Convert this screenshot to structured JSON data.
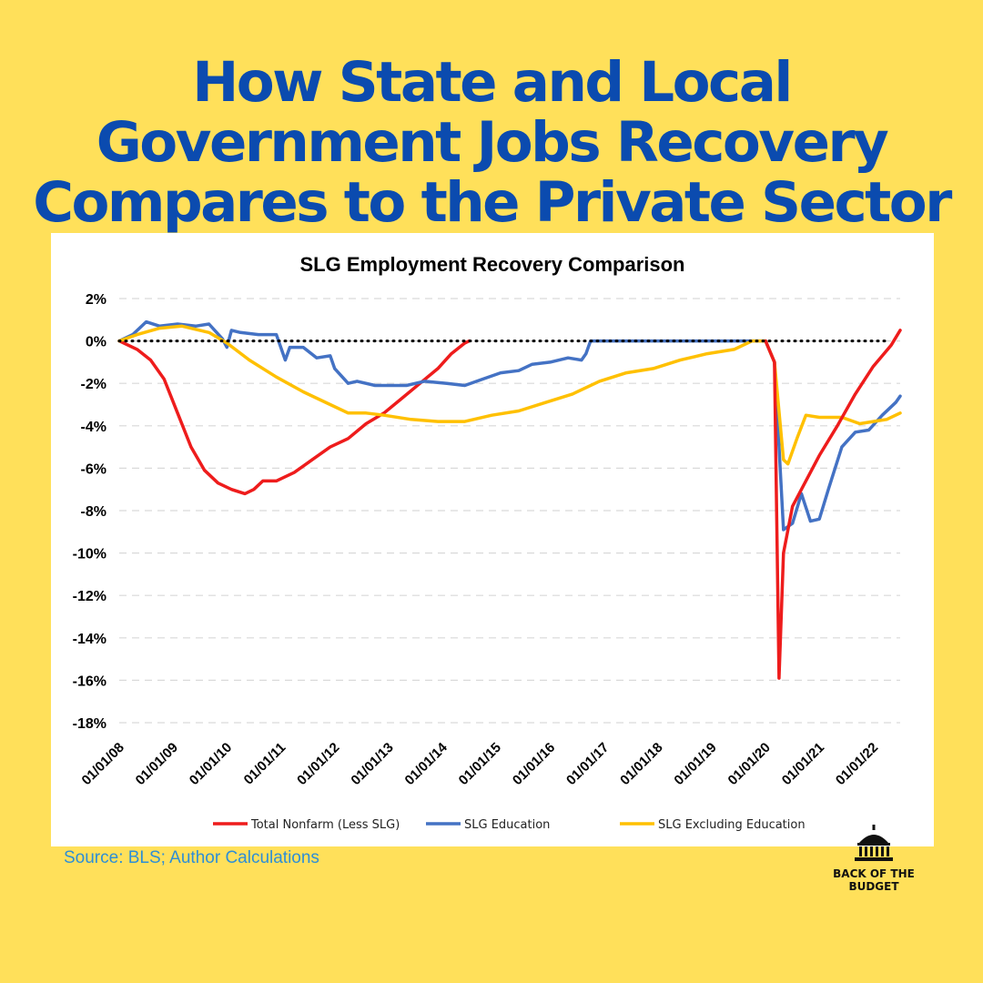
{
  "headline": {
    "line1": "How State and Local",
    "line2": "Government Jobs Recovery",
    "line3": "Compares to the Private Sector"
  },
  "source": "Source: BLS; Author Calculations",
  "logo": {
    "line1": "BACK OF THE",
    "line2": "BUDGET"
  },
  "colors": {
    "background": "#FFE05A",
    "headline": "#0B4BAF",
    "source": "#2E8ED6"
  },
  "chart_data": {
    "type": "line",
    "title": "SLG Employment Recovery Comparison",
    "xlabel": "",
    "ylabel": "",
    "ylim": [
      -18,
      2
    ],
    "x_range": [
      "2008-01",
      "2022-07"
    ],
    "y_ticks": [
      "2%",
      "0%",
      "-2%",
      "-4%",
      "-6%",
      "-8%",
      "-10%",
      "-12%",
      "-14%",
      "-16%",
      "-18%"
    ],
    "x_ticks": [
      "01/01/08",
      "01/01/09",
      "01/01/10",
      "01/01/11",
      "01/01/12",
      "01/01/13",
      "01/01/14",
      "01/01/15",
      "01/01/16",
      "01/01/17",
      "01/01/18",
      "01/01/19",
      "01/01/20",
      "01/01/21",
      "01/01/22"
    ],
    "grid": true,
    "legend_position": "bottom",
    "series": [
      {
        "name": "Total Nonfarm (Less SLG)",
        "color": "#EE1C1C",
        "points": [
          [
            "2008-01",
            0
          ],
          [
            "2008-05",
            -0.4
          ],
          [
            "2008-08",
            -0.9
          ],
          [
            "2008-11",
            -1.8
          ],
          [
            "2009-02",
            -3.4
          ],
          [
            "2009-05",
            -5.0
          ],
          [
            "2009-08",
            -6.1
          ],
          [
            "2009-11",
            -6.7
          ],
          [
            "2010-02",
            -7.0
          ],
          [
            "2010-05",
            -7.2
          ],
          [
            "2010-07",
            -7.0
          ],
          [
            "2010-09",
            -6.6
          ],
          [
            "2010-12",
            -6.6
          ],
          [
            "2011-04",
            -6.2
          ],
          [
            "2011-08",
            -5.6
          ],
          [
            "2011-12",
            -5.0
          ],
          [
            "2012-04",
            -4.6
          ],
          [
            "2012-08",
            -3.9
          ],
          [
            "2012-12",
            -3.4
          ],
          [
            "2013-04",
            -2.7
          ],
          [
            "2013-08",
            -2.0
          ],
          [
            "2013-12",
            -1.3
          ],
          [
            "2014-03",
            -0.6
          ],
          [
            "2014-06",
            -0.1
          ],
          [
            "2014-07",
            0
          ]
        ]
      },
      {
        "name": "SLG Education",
        "color": "#4472C4",
        "points": [
          [
            "2008-01",
            0
          ],
          [
            "2008-04",
            0.3
          ],
          [
            "2008-07",
            0.9
          ],
          [
            "2008-10",
            0.7
          ],
          [
            "2009-02",
            0.8
          ],
          [
            "2009-06",
            0.7
          ],
          [
            "2009-09",
            0.8
          ],
          [
            "2009-12",
            0.1
          ],
          [
            "2010-01",
            -0.3
          ],
          [
            "2010-02",
            0.5
          ],
          [
            "2010-04",
            0.4
          ],
          [
            "2010-08",
            0.3
          ],
          [
            "2010-12",
            0.3
          ],
          [
            "2011-02",
            -0.9
          ],
          [
            "2011-03",
            -0.3
          ],
          [
            "2011-06",
            -0.3
          ],
          [
            "2011-09",
            -0.8
          ],
          [
            "2011-12",
            -0.7
          ],
          [
            "2012-01",
            -1.3
          ],
          [
            "2012-04",
            -2.0
          ],
          [
            "2012-06",
            -1.9
          ],
          [
            "2012-10",
            -2.1
          ],
          [
            "2013-01",
            -2.1
          ],
          [
            "2013-05",
            -2.1
          ],
          [
            "2013-09",
            -1.9
          ],
          [
            "2014-02",
            -2.0
          ],
          [
            "2014-06",
            -2.1
          ],
          [
            "2014-10",
            -1.8
          ],
          [
            "2015-02",
            -1.5
          ],
          [
            "2015-06",
            -1.4
          ],
          [
            "2015-09",
            -1.1
          ],
          [
            "2016-01",
            -1.0
          ],
          [
            "2016-05",
            -0.8
          ],
          [
            "2016-08",
            -0.9
          ],
          [
            "2016-09",
            -0.6
          ],
          [
            "2016-10",
            0
          ],
          [
            "2020-01",
            0
          ],
          [
            "2020-03",
            -1.0
          ],
          [
            "2020-05",
            -8.9
          ],
          [
            "2020-07",
            -8.6
          ],
          [
            "2020-09",
            -7.2
          ],
          [
            "2020-11",
            -8.5
          ],
          [
            "2021-01",
            -8.4
          ],
          [
            "2021-03",
            -7.0
          ],
          [
            "2021-06",
            -5.0
          ],
          [
            "2021-09",
            -4.3
          ],
          [
            "2021-12",
            -4.2
          ],
          [
            "2022-03",
            -3.5
          ],
          [
            "2022-06",
            -2.9
          ],
          [
            "2022-07",
            -2.6
          ]
        ]
      },
      {
        "name": "SLG Excluding Education",
        "color": "#FFC000",
        "points": [
          [
            "2008-01",
            0
          ],
          [
            "2008-05",
            0.3
          ],
          [
            "2008-10",
            0.6
          ],
          [
            "2009-03",
            0.7
          ],
          [
            "2009-09",
            0.4
          ],
          [
            "2010-01",
            -0.1
          ],
          [
            "2010-06",
            -0.9
          ],
          [
            "2010-12",
            -1.7
          ],
          [
            "2011-06",
            -2.4
          ],
          [
            "2011-12",
            -3.0
          ],
          [
            "2012-04",
            -3.4
          ],
          [
            "2012-08",
            -3.4
          ],
          [
            "2012-12",
            -3.5
          ],
          [
            "2013-06",
            -3.7
          ],
          [
            "2013-12",
            -3.8
          ],
          [
            "2014-06",
            -3.8
          ],
          [
            "2014-12",
            -3.5
          ],
          [
            "2015-06",
            -3.3
          ],
          [
            "2015-12",
            -2.9
          ],
          [
            "2016-06",
            -2.5
          ],
          [
            "2016-12",
            -1.9
          ],
          [
            "2017-06",
            -1.5
          ],
          [
            "2017-12",
            -1.3
          ],
          [
            "2018-06",
            -0.9
          ],
          [
            "2018-12",
            -0.6
          ],
          [
            "2019-06",
            -0.4
          ],
          [
            "2019-10",
            0
          ],
          [
            "2020-01",
            0
          ],
          [
            "2020-03",
            -1.0
          ],
          [
            "2020-05",
            -5.6
          ],
          [
            "2020-06",
            -5.8
          ],
          [
            "2020-08",
            -4.6
          ],
          [
            "2020-10",
            -3.5
          ],
          [
            "2021-01",
            -3.6
          ],
          [
            "2021-06",
            -3.6
          ],
          [
            "2021-10",
            -3.9
          ],
          [
            "2022-01",
            -3.8
          ],
          [
            "2022-04",
            -3.7
          ],
          [
            "2022-07",
            -3.4
          ]
        ]
      },
      {
        "name": "Total Nonfarm (Less SLG) 2020",
        "legend": false,
        "color": "#EE1C1C",
        "points": [
          [
            "2020-01",
            0
          ],
          [
            "2020-03",
            -1.0
          ],
          [
            "2020-04",
            -15.9
          ],
          [
            "2020-05",
            -10.0
          ],
          [
            "2020-07",
            -7.8
          ],
          [
            "2020-10",
            -6.6
          ],
          [
            "2021-01",
            -5.4
          ],
          [
            "2021-05",
            -4.0
          ],
          [
            "2021-09",
            -2.5
          ],
          [
            "2022-01",
            -1.2
          ],
          [
            "2022-05",
            -0.2
          ],
          [
            "2022-07",
            0.5
          ]
        ]
      }
    ],
    "reference_line": {
      "y": 0,
      "style": "dotted",
      "color": "#000000"
    }
  }
}
